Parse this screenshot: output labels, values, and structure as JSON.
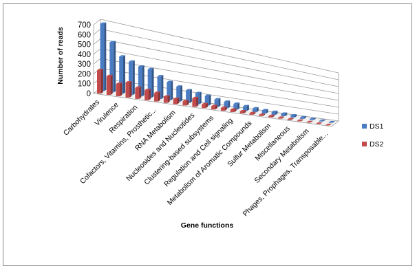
{
  "chart_data": {
    "type": "bar",
    "title": "",
    "xlabel": "Gene functions",
    "ylabel": "Number of reads",
    "ylim": [
      0,
      700
    ],
    "yticks": [
      0,
      100,
      200,
      300,
      400,
      500,
      600,
      700
    ],
    "grid": true,
    "legend": "right",
    "categories": [
      "Carbohydrates",
      "",
      "Virulence",
      "",
      "Respiration",
      "",
      "Cofactors, Vitamins, Prosthetic...",
      "",
      "RNA Metabolism",
      "",
      "Nucleosides and Nucleotides",
      "",
      "Clustering-based subsystems",
      "",
      "Regulation and Cell signaling",
      "",
      "Metabolism of Aromatic Compounds",
      "",
      "Sulfur Metabolism",
      "",
      "Miscellaneous",
      "",
      "Secondary Metabolism",
      "",
      "Phages, Prophages, Transposable..."
    ],
    "series": [
      {
        "name": "DS1",
        "color": "#4a7cc4",
        "values": [
          690,
          520,
          390,
          355,
          320,
          310,
          250,
          205,
          170,
          145,
          130,
          115,
          90,
          78,
          70,
          58,
          48,
          42,
          38,
          32,
          28,
          20,
          15,
          10,
          6
        ]
      },
      {
        "name": "DS2",
        "color": "#c24a4a",
        "values": [
          240,
          195,
          130,
          160,
          120,
          110,
          95,
          70,
          60,
          50,
          100,
          45,
          40,
          35,
          30,
          25,
          20,
          15,
          18,
          12,
          10,
          8,
          6,
          4,
          3
        ]
      }
    ]
  }
}
